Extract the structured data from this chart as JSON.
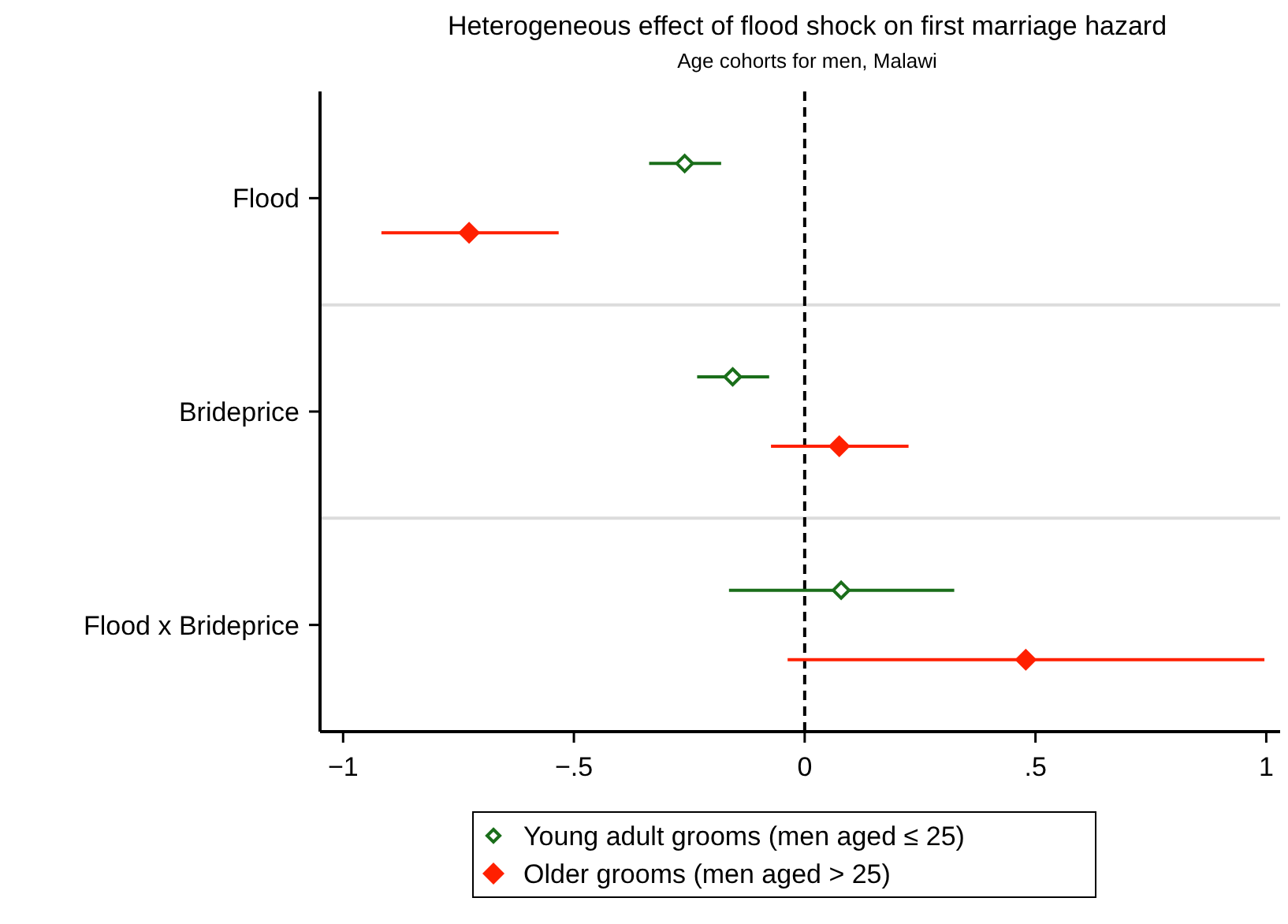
{
  "chart_data": {
    "type": "scatter",
    "orientation": "horizontal",
    "title": "Heterogeneous effect of flood shock on first marriage hazard",
    "subtitle": "Age cohorts for men, Malawi",
    "categories": [
      "Flood",
      "Brideprice",
      "Flood x Brideprice"
    ],
    "series": [
      {
        "name": "Young adult grooms (men aged ≤ 25)",
        "color": "#1a6e1a",
        "values": [
          -0.26,
          -0.156,
          0.079
        ],
        "errors": [
          [
            -0.337,
            -0.181
          ],
          [
            -0.233,
            -0.077
          ],
          [
            -0.164,
            0.324
          ]
        ]
      },
      {
        "name": "Older grooms (men aged > 25)",
        "color": "#ff2000",
        "values": [
          -0.727,
          0.075,
          0.479
        ],
        "errors": [
          [
            -0.917,
            -0.533
          ],
          [
            -0.073,
            0.225
          ],
          [
            -0.037,
            0.996
          ]
        ]
      }
    ],
    "xlim": [
      -1.05,
      1.03
    ],
    "xticks": [
      {
        "value": -1,
        "label": "−1"
      },
      {
        "value": -0.5,
        "label": "−.5"
      },
      0,
      {
        "value": 0.5,
        "label": ".5"
      },
      1
    ],
    "ref_lines": [
      {
        "axis": "x",
        "value": 0,
        "color": "#000000",
        "line_style": "dashed"
      }
    ],
    "grid": "y",
    "legend": "bottom",
    "marker": "diamond"
  }
}
